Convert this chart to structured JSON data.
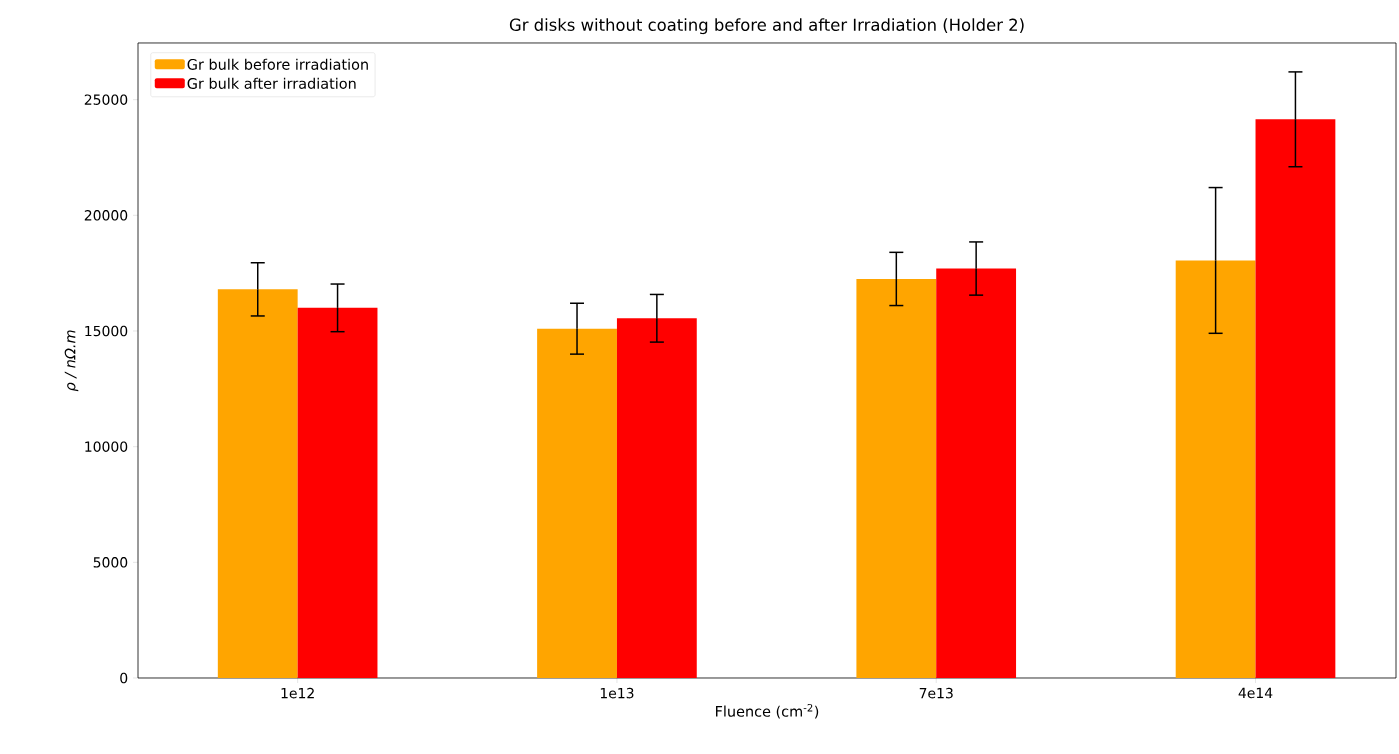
{
  "chart_data": {
    "type": "bar",
    "title": "Gr disks without coating before and after Irradiation (Holder 2)",
    "xlabel": "Fluence (cm$^{-2}$)",
    "ylabel": "ρ / nΩ.m",
    "categories": [
      "1e12",
      "1e13",
      "7e13",
      "4e14"
    ],
    "series": [
      {
        "name": "Gr bulk before irradiation",
        "color": "#ffa500",
        "values": [
          16800,
          15100,
          17250,
          18050
        ],
        "errors": [
          1150,
          1100,
          1150,
          3150
        ]
      },
      {
        "name": "Gr bulk after irradiation",
        "color": "#ff0000",
        "values": [
          16000,
          15550,
          17700,
          24150
        ],
        "errors": [
          1030,
          1030,
          1150,
          2050
        ]
      }
    ],
    "ylim": [
      0,
      27450
    ],
    "yticks": [
      0,
      5000,
      10000,
      15000,
      20000,
      25000
    ],
    "legend": "top left",
    "grid": false
  }
}
